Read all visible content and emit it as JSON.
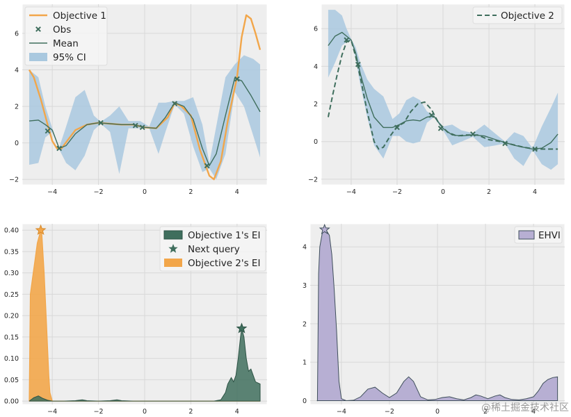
{
  "figure": {
    "watermark": "@稀土掘金技术社区"
  },
  "colors": {
    "orange": "#f2a64a",
    "green": "#3f6e5d",
    "ci_blue": "#a9c8df",
    "purple": "#b7afd3",
    "purple_edge": "#3f4f5b",
    "grid": "#d8d8d8",
    "axes_bg": "#eeeeee"
  },
  "chart_data": [
    {
      "type": "line",
      "panel": "top-left",
      "xlim": [
        -5.3,
        5.3
      ],
      "ylim": [
        -2.3,
        7.6
      ],
      "xticks": [
        -4,
        -2,
        0,
        2,
        4
      ],
      "xtick_labels": [
        "−4",
        "−2",
        "0",
        "2",
        "4"
      ],
      "yticks": [
        -2,
        0,
        2,
        4,
        6
      ],
      "ytick_labels": [
        "−2",
        "0",
        "2",
        "4",
        "6"
      ],
      "grid": true,
      "legend_position": "top-left",
      "legend": [
        "Objective 1",
        "Obs",
        "Mean",
        "95% CI"
      ],
      "series": [
        {
          "name": "Objective 1",
          "style": "orange-line",
          "x": [
            -5,
            -4.8,
            -4.5,
            -4.2,
            -4,
            -3.8,
            -3.6,
            -3.3,
            -3,
            -2.5,
            -2,
            -1.5,
            -1,
            -0.5,
            0,
            0.5,
            1,
            1.3,
            1.6,
            2,
            2.4,
            2.8,
            3,
            3.3,
            3.6,
            4,
            4.2,
            4.4,
            4.6,
            4.8,
            5
          ],
          "y": [
            4.0,
            3.6,
            2.4,
            1.0,
            0.1,
            -0.3,
            -0.3,
            0.2,
            0.7,
            1.0,
            1.1,
            1.05,
            1.0,
            1.0,
            0.85,
            0.8,
            1.4,
            2.2,
            2.0,
            1.5,
            -0.4,
            -1.8,
            -2.0,
            -1.0,
            1.2,
            3.6,
            5.8,
            7.0,
            6.8,
            6.0,
            5.1
          ]
        },
        {
          "name": "Mean",
          "style": "green-line",
          "x": [
            -5,
            -4.6,
            -4.3,
            -4,
            -3.7,
            -3.4,
            -3,
            -2.5,
            -2,
            -1.5,
            -1,
            -0.5,
            0,
            0.5,
            0.9,
            1.3,
            1.7,
            2.1,
            2.5,
            2.8,
            3.1,
            3.5,
            3.9,
            4.2,
            4.6,
            5
          ],
          "y": [
            1.2,
            1.25,
            1.0,
            0.7,
            -0.3,
            -0.15,
            0.5,
            1.0,
            1.1,
            1.05,
            1.0,
            1.0,
            0.85,
            0.8,
            1.4,
            2.2,
            2.0,
            1.3,
            -0.3,
            -1.25,
            -0.6,
            1.5,
            3.55,
            3.4,
            2.6,
            1.7
          ]
        },
        {
          "name": "95% CI upper",
          "x": [
            -5,
            -4.6,
            -4.3,
            -4,
            -3.7,
            -3.4,
            -3,
            -2.6,
            -2.2,
            -1.9,
            -1.5,
            -1.1,
            -0.7,
            -0.2,
            0.2,
            0.6,
            0.9,
            1.3,
            1.7,
            2.1,
            2.5,
            2.8,
            3.1,
            3.5,
            3.9,
            4.3,
            4.7,
            5
          ],
          "y": [
            4.0,
            3.6,
            2.0,
            0.8,
            -0.25,
            0.9,
            2.5,
            2.9,
            1.5,
            1.15,
            1.5,
            2.0,
            1.2,
            1.2,
            0.9,
            2.2,
            2.2,
            2.3,
            2.3,
            2.5,
            1.0,
            -1.1,
            0.9,
            3.6,
            4.3,
            4.8,
            4.6,
            4.3
          ]
        },
        {
          "name": "95% CI lower",
          "x": [
            -5,
            -4.6,
            -4.3,
            -4,
            -3.7,
            -3.4,
            -3,
            -2.6,
            -2.2,
            -1.9,
            -1.5,
            -1.1,
            -0.7,
            -0.2,
            0.2,
            0.6,
            0.9,
            1.3,
            1.7,
            2.1,
            2.5,
            2.8,
            3.1,
            3.5,
            3.9,
            4.3,
            4.7,
            5
          ],
          "y": [
            -1.2,
            -1.1,
            0.3,
            0.6,
            -0.35,
            -1.1,
            -1.5,
            -0.7,
            0.7,
            1.05,
            0.6,
            -1.7,
            0.8,
            0.8,
            0.8,
            -0.6,
            0.6,
            2.1,
            1.6,
            -0.2,
            -1.6,
            -1.4,
            -2.0,
            -0.6,
            2.8,
            2.0,
            0.4,
            -0.8
          ]
        },
        {
          "name": "Obs",
          "style": "green-x",
          "x": [
            -4.2,
            -3.7,
            -1.9,
            -0.4,
            -0.1,
            1.3,
            2.7,
            4.0
          ],
          "y": [
            0.65,
            -0.3,
            1.1,
            0.95,
            0.85,
            2.15,
            -1.25,
            3.5
          ]
        }
      ]
    },
    {
      "type": "line",
      "panel": "top-right",
      "xlim": [
        -5.3,
        5.3
      ],
      "ylim": [
        -2.3,
        7.3
      ],
      "xticks": [
        -4,
        -2,
        0,
        2,
        4
      ],
      "xtick_labels": [
        "−4",
        "−2",
        "0",
        "2",
        "4"
      ],
      "yticks": [
        -2,
        0,
        2,
        4,
        6
      ],
      "ytick_labels": [
        "−2",
        "0",
        "2",
        "4",
        "6"
      ],
      "grid": true,
      "legend_position": "top-right",
      "legend": [
        "Objective 2"
      ],
      "series": [
        {
          "name": "Objective 2",
          "style": "green-dashed",
          "x": [
            -5,
            -4.8,
            -4.6,
            -4.4,
            -4.2,
            -4,
            -3.8,
            -3.6,
            -3.3,
            -3,
            -2.8,
            -2.6,
            -2.3,
            -2,
            -1.7,
            -1.4,
            -1.1,
            -0.8,
            -0.5,
            -0.2,
            0.2,
            0.6,
            1,
            1.5,
            2,
            2.5,
            3,
            3.5,
            4,
            4.5,
            5
          ],
          "y": [
            1.3,
            2.5,
            3.6,
            4.6,
            5.3,
            5.4,
            4.5,
            3.4,
            1.6,
            0.0,
            -0.4,
            -0.3,
            0.3,
            0.8,
            1.0,
            1.6,
            2.0,
            2.1,
            1.7,
            1.0,
            0.5,
            0.3,
            0.35,
            0.35,
            0.1,
            0.0,
            -0.15,
            -0.3,
            -0.4,
            -0.4,
            -0.4
          ]
        },
        {
          "name": "Mean",
          "style": "green-line",
          "x": [
            -5,
            -4.7,
            -4.4,
            -4.2,
            -4,
            -3.8,
            -3.6,
            -3.3,
            -3,
            -2.6,
            -2.2,
            -1.9,
            -1.6,
            -1.3,
            -1.0,
            -0.7,
            -0.4,
            0,
            0.4,
            0.8,
            1.3,
            1.8,
            2.3,
            2.7,
            3.1,
            3.5,
            3.9,
            4.3,
            4.7,
            5
          ],
          "y": [
            5.1,
            5.6,
            5.8,
            5.6,
            5.4,
            4.7,
            3.6,
            2.3,
            1.3,
            0.75,
            0.75,
            0.9,
            1.1,
            1.15,
            1.1,
            1.3,
            1.35,
            0.7,
            0.35,
            0.3,
            0.35,
            0.3,
            0.1,
            -0.05,
            -0.2,
            -0.3,
            -0.4,
            -0.35,
            -0.05,
            0.4
          ]
        },
        {
          "name": "95% CI upper",
          "x": [
            -5,
            -4.7,
            -4.4,
            -4.2,
            -4,
            -3.8,
            -3.6,
            -3.3,
            -3,
            -2.6,
            -2.2,
            -1.9,
            -1.6,
            -1.3,
            -1.0,
            -0.7,
            -0.4,
            0,
            0.4,
            0.8,
            1.3,
            1.8,
            2.3,
            2.7,
            3.1,
            3.5,
            3.9,
            4.3,
            4.7,
            5
          ],
          "y": [
            7.0,
            7.0,
            6.7,
            6.0,
            5.45,
            5.0,
            4.2,
            3.3,
            2.8,
            2.4,
            1.2,
            1.5,
            2.2,
            2.4,
            2.2,
            1.6,
            1.4,
            0.8,
            0.9,
            0.6,
            0.45,
            0.9,
            0.4,
            0.0,
            0.5,
            0.3,
            -0.35,
            0.8,
            1.8,
            2.6
          ]
        },
        {
          "name": "95% CI lower",
          "x": [
            -5,
            -4.7,
            -4.4,
            -4.2,
            -4,
            -3.8,
            -3.6,
            -3.3,
            -3,
            -2.6,
            -2.2,
            -1.9,
            -1.6,
            -1.3,
            -1.0,
            -0.7,
            -0.4,
            0,
            0.4,
            0.8,
            1.3,
            1.8,
            2.3,
            2.7,
            3.1,
            3.5,
            3.9,
            4.3,
            4.7,
            5
          ],
          "y": [
            3.4,
            4.2,
            5.1,
            5.3,
            5.35,
            4.4,
            3.0,
            1.3,
            -0.2,
            -0.9,
            0.3,
            0.3,
            0.0,
            -0.1,
            0.0,
            1.0,
            1.3,
            0.6,
            -0.2,
            0.0,
            0.25,
            -0.3,
            -0.2,
            -0.1,
            -0.9,
            -1.3,
            -0.45,
            -1.2,
            -1.5,
            -1.2
          ]
        },
        {
          "name": "Obs",
          "style": "green-x",
          "x": [
            -4.2,
            -3.7,
            -2.0,
            -0.5,
            -0.1,
            1.3,
            2.7,
            4.0
          ],
          "y": [
            5.4,
            4.1,
            0.75,
            1.4,
            0.7,
            0.4,
            -0.1,
            -0.4
          ]
        }
      ]
    },
    {
      "type": "area",
      "panel": "bottom-left",
      "xlim": [
        -5.3,
        5.3
      ],
      "ylim": [
        -0.008,
        0.415
      ],
      "xticks": [
        -4,
        -2,
        0,
        2,
        4
      ],
      "xtick_labels": [
        "−4",
        "−2",
        "0",
        "2",
        "4"
      ],
      "yticks": [
        0,
        0.05,
        0.1,
        0.15,
        0.2,
        0.25,
        0.3,
        0.35,
        0.4
      ],
      "ytick_labels": [
        "0.00",
        "0.05",
        "0.10",
        "0.15",
        "0.20",
        "0.25",
        "0.30",
        "0.35",
        "0.40"
      ],
      "grid": true,
      "legend_position": "top-right",
      "legend": [
        "Objective 1's EI",
        "Next query",
        "Objective 2's EI"
      ],
      "series": [
        {
          "name": "Objective 1's EI",
          "style": "green-area",
          "x": [
            -5,
            -4.8,
            -4.6,
            -4.4,
            -4.2,
            -4.0,
            -3.5,
            -3.0,
            -2.7,
            -2.5,
            -2.0,
            -1.5,
            -1.2,
            -1.0,
            -0.5,
            0,
            0.5,
            1,
            1.5,
            2,
            2.5,
            3,
            3.3,
            3.5,
            3.6,
            3.75,
            3.85,
            3.95,
            4.05,
            4.15,
            4.2,
            4.3,
            4.4,
            4.5,
            4.6,
            4.7,
            4.8,
            5
          ],
          "y": [
            0.0,
            0.008,
            0.012,
            0.006,
            0.002,
            0.0,
            0.0,
            0.001,
            0.003,
            0.001,
            0.0,
            0.001,
            0.003,
            0.001,
            0.0,
            0.0,
            0.0,
            0.0,
            0.0,
            0.0,
            0.0,
            0.0,
            0.003,
            0.02,
            0.04,
            0.055,
            0.045,
            0.06,
            0.1,
            0.15,
            0.17,
            0.15,
            0.1,
            0.07,
            0.075,
            0.06,
            0.045,
            0.04
          ]
        },
        {
          "name": "Objective 2's EI",
          "style": "orange-area",
          "x": [
            -5,
            -4.95,
            -4.85,
            -4.75,
            -4.65,
            -4.55,
            -4.5,
            -4.45,
            -4.35,
            -4.25,
            -4.15,
            -4.1,
            -4.0,
            -3.0,
            -2.0,
            -1.0,
            0,
            1,
            2,
            3,
            4,
            5
          ],
          "y": [
            0.0,
            0.25,
            0.29,
            0.33,
            0.37,
            0.39,
            0.4,
            0.39,
            0.3,
            0.18,
            0.06,
            0.02,
            0.0,
            0.0,
            0.0,
            0.0,
            0.0,
            0.0,
            0.0,
            0.0,
            0.0,
            0.0
          ]
        },
        {
          "name": "Next query",
          "style": "green-star",
          "x": [
            4.2
          ],
          "y": [
            0.17
          ]
        },
        {
          "name": "Next query (Objective 2)",
          "style": "orange-star",
          "x": [
            -4.5
          ],
          "y": [
            0.4
          ]
        }
      ]
    },
    {
      "type": "area",
      "panel": "bottom-right",
      "xlim": [
        -5.3,
        5.3
      ],
      "ylim": [
        -0.1,
        4.6
      ],
      "xticks": [
        -4,
        -2,
        0,
        2,
        4
      ],
      "xtick_labels": [
        "−4",
        "−2",
        "0",
        "2",
        "4"
      ],
      "yticks": [
        0,
        1,
        2,
        3,
        4
      ],
      "ytick_labels": [
        "0",
        "1",
        "2",
        "3",
        "4"
      ],
      "grid": true,
      "legend_position": "top-right",
      "legend": [
        "EHVI"
      ],
      "series": [
        {
          "name": "EHVI",
          "style": "purple-area",
          "x": [
            -5,
            -4.95,
            -4.9,
            -4.8,
            -4.7,
            -4.6,
            -4.5,
            -4.4,
            -4.3,
            -4.2,
            -4.1,
            -4.0,
            -3.8,
            -3.5,
            -3.2,
            -2.9,
            -2.6,
            -2.3,
            -2.0,
            -1.7,
            -1.4,
            -1.2,
            -1.0,
            -0.7,
            -0.4,
            -0.1,
            0.2,
            0.5,
            0.8,
            1.1,
            1.4,
            1.6,
            1.8,
            2.1,
            2.4,
            2.6,
            2.8,
            3.1,
            3.4,
            3.7,
            4.0,
            4.2,
            4.4,
            4.6,
            4.8,
            5.0
          ],
          "y": [
            0.0,
            3.3,
            4.0,
            4.35,
            4.45,
            4.4,
            4.3,
            3.8,
            2.9,
            1.8,
            0.5,
            0.05,
            0.0,
            0.01,
            0.1,
            0.3,
            0.35,
            0.2,
            0.08,
            0.2,
            0.5,
            0.62,
            0.5,
            0.1,
            0.02,
            0.03,
            0.08,
            0.1,
            0.05,
            0.02,
            0.08,
            0.15,
            0.12,
            0.05,
            0.12,
            0.15,
            0.08,
            0.03,
            0.02,
            0.05,
            0.1,
            0.25,
            0.45,
            0.55,
            0.6,
            0.62
          ]
        },
        {
          "name": "Next query",
          "style": "purple-star",
          "x": [
            -4.7
          ],
          "y": [
            4.45
          ]
        }
      ]
    }
  ]
}
